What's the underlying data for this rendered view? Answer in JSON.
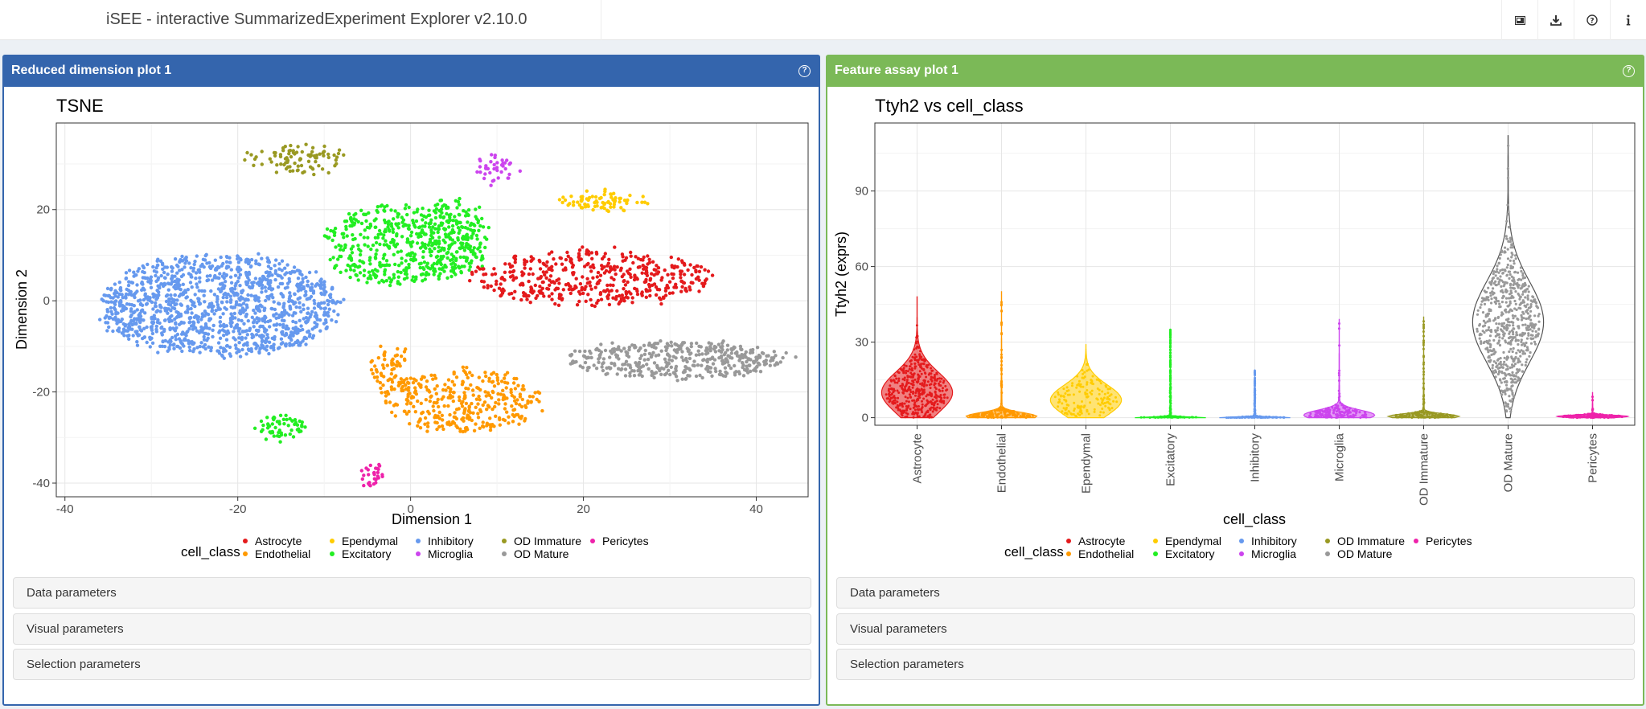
{
  "header": {
    "title": "iSEE - interactive SummarizedExperiment Explorer v2.10.0",
    "buttons": [
      "image-icon",
      "download-icon",
      "question-circle-icon",
      "info-icon"
    ]
  },
  "panels": {
    "left": {
      "title": "Reduced dimension plot 1",
      "sections": [
        "Data parameters",
        "Visual parameters",
        "Selection parameters"
      ]
    },
    "right": {
      "title": "Feature assay plot 1",
      "sections": [
        "Data parameters",
        "Visual parameters",
        "Selection parameters"
      ]
    }
  },
  "legend": {
    "title": "cell_class",
    "entries": [
      {
        "name": "Astrocyte",
        "color": "#e41a1c"
      },
      {
        "name": "Endothelial",
        "color": "#ff9900"
      },
      {
        "name": "Ependymal",
        "color": "#ffcc00"
      },
      {
        "name": "Excitatory",
        "color": "#22ee22"
      },
      {
        "name": "Inhibitory",
        "color": "#6699ee"
      },
      {
        "name": "Microglia",
        "color": "#cc44ee"
      },
      {
        "name": "OD Immature",
        "color": "#999922"
      },
      {
        "name": "OD Mature",
        "color": "#999999"
      },
      {
        "name": "Pericytes",
        "color": "#ee22aa"
      }
    ]
  },
  "chart_data": [
    {
      "type": "scatter",
      "title": "TSNE",
      "xlabel": "Dimension 1",
      "ylabel": "Dimension 2",
      "xlim": [
        -41,
        46
      ],
      "ylim": [
        -43,
        39
      ],
      "xticks": [
        -40,
        -20,
        0,
        20,
        40
      ],
      "yticks": [
        -40,
        -20,
        0,
        20
      ],
      "grid": true,
      "legend_position": "bottom",
      "clusters": [
        {
          "class": "Inhibitory",
          "cx": -22,
          "cy": -1,
          "rx": 14,
          "ry": 11,
          "n": 1300
        },
        {
          "class": "Excitatory",
          "cx": -1,
          "cy": 12,
          "rx": 9,
          "ry": 9,
          "n": 450
        },
        {
          "class": "Excitatory",
          "cx": 5,
          "cy": 14,
          "rx": 4,
          "ry": 9,
          "n": 160
        },
        {
          "class": "Astrocyte",
          "cx": 21,
          "cy": 5,
          "rx": 14,
          "ry": 6,
          "n": 460
        },
        {
          "class": "OD Mature",
          "cx": 31,
          "cy": -13,
          "rx": 13,
          "ry": 4,
          "n": 420
        },
        {
          "class": "Endothelial",
          "cx": 6,
          "cy": -22,
          "rx": 9,
          "ry": 7,
          "n": 330
        },
        {
          "class": "Endothelial",
          "cx": -2,
          "cy": -16,
          "rx": 2.5,
          "ry": 7,
          "n": 80
        },
        {
          "class": "OD Immature",
          "cx": -13,
          "cy": 31,
          "rx": 6,
          "ry": 3,
          "n": 90
        },
        {
          "class": "Ependymal",
          "cx": 22,
          "cy": 22,
          "rx": 5,
          "ry": 2.2,
          "n": 80
        },
        {
          "class": "Microglia",
          "cx": 10,
          "cy": 29,
          "rx": 2.5,
          "ry": 3,
          "n": 40
        },
        {
          "class": "Excitatory",
          "cx": -15,
          "cy": -28,
          "rx": 3,
          "ry": 2.6,
          "n": 60
        },
        {
          "class": "Pericytes",
          "cx": -4.5,
          "cy": -38,
          "rx": 1.4,
          "ry": 3.2,
          "n": 30
        }
      ]
    },
    {
      "type": "violin",
      "title": "Ttyh2 vs cell_class",
      "xlabel": "cell_class",
      "ylabel": "Ttyh2 (exprs)",
      "ylim": [
        -3,
        117
      ],
      "yticks": [
        0,
        30,
        60,
        90
      ],
      "grid": true,
      "legend_position": "bottom",
      "categories": [
        "Astrocyte",
        "Endothelial",
        "Ependymal",
        "Excitatory",
        "Inhibitory",
        "Microglia",
        "OD Immature",
        "OD Mature",
        "Pericytes"
      ],
      "max": [
        48,
        50,
        29,
        35,
        19,
        39,
        40,
        112,
        10
      ],
      "center": [
        10,
        0.5,
        7,
        0,
        0,
        1,
        0.5,
        38,
        0.5
      ],
      "spread": [
        8,
        1.5,
        6,
        0.3,
        0.3,
        2,
        1,
        16,
        0.5
      ]
    }
  ]
}
